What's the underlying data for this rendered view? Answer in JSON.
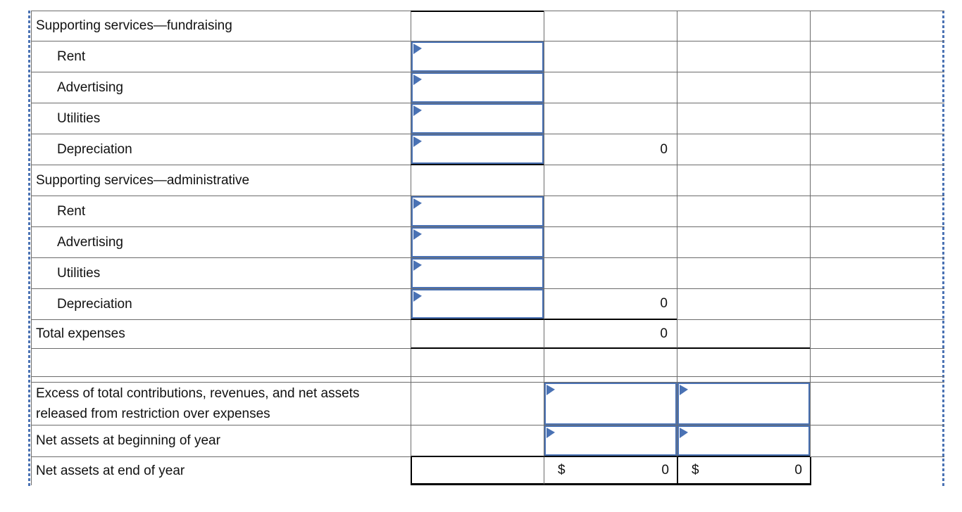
{
  "colors": {
    "accent_blue": "#4a72b4",
    "gridline_gray": "#6b6b6b",
    "subtotal_border_black": "#000000",
    "background": "#ffffff"
  },
  "icons": {
    "answer_marker": "dropdown-marker-triangle",
    "page_break": "blue-dashed-line"
  },
  "table": {
    "rows": [
      {
        "label": "Supporting services—fundraising"
      },
      {
        "label": "Rent"
      },
      {
        "label": "Advertising"
      },
      {
        "label": "Utilities"
      },
      {
        "label": "Depreciation",
        "col2": "0"
      },
      {
        "label": "Supporting services—administrative"
      },
      {
        "label": "Rent"
      },
      {
        "label": "Advertising"
      },
      {
        "label": "Utilities"
      },
      {
        "label": "Depreciation",
        "col2": "0"
      },
      {
        "label": "Total expenses",
        "col2": "0"
      },
      {
        "label": ""
      },
      {
        "label": "Excess of total contributions, revenues, and net assets released from restriction over expenses"
      },
      {
        "label": "Net assets at beginning of year"
      },
      {
        "label": "Net assets at end of year",
        "col2_prefix": "$",
        "col2_value": "0",
        "col3_prefix": "$",
        "col3_value": "0"
      }
    ]
  }
}
